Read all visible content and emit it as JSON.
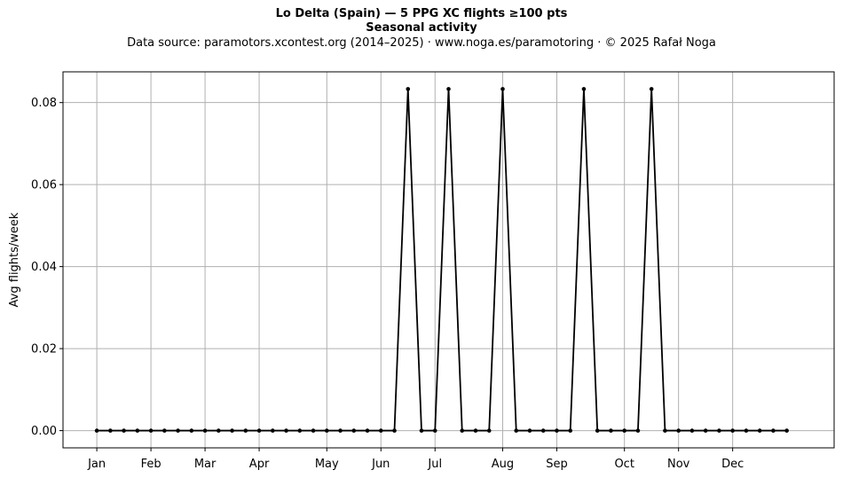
{
  "chart_data": {
    "type": "line",
    "title": "Lo Delta (Spain)  —  5 PPG XC flights ≥100 pts",
    "subtitle": "Seasonal activity",
    "source_note": "Data source: paramotors.xcontest.org (2014–2025)  ·  www.noga.es/paramotoring  ·  © 2025 Rafał Noga",
    "xlabel": "",
    "ylabel": "Avg flights/week",
    "xlim": [
      -2.5,
      54.5
    ],
    "ylim": [
      -0.0042,
      0.0875
    ],
    "grid": true,
    "line_color": "#000000",
    "grid_color": "#b0b0b0",
    "x_ticks": [
      {
        "label": "Jan",
        "week": 0
      },
      {
        "label": "Feb",
        "week": 4
      },
      {
        "label": "Mar",
        "week": 8
      },
      {
        "label": "Apr",
        "week": 12
      },
      {
        "label": "May",
        "week": 17
      },
      {
        "label": "Jun",
        "week": 21
      },
      {
        "label": "Jul",
        "week": 25
      },
      {
        "label": "Aug",
        "week": 30
      },
      {
        "label": "Sep",
        "week": 34
      },
      {
        "label": "Oct",
        "week": 39
      },
      {
        "label": "Nov",
        "week": 43
      },
      {
        "label": "Dec",
        "week": 47
      }
    ],
    "y_ticks": [
      {
        "label": "0.00",
        "value": 0.0
      },
      {
        "label": "0.02",
        "value": 0.02
      },
      {
        "label": "0.04",
        "value": 0.04
      },
      {
        "label": "0.06",
        "value": 0.06
      },
      {
        "label": "0.08",
        "value": 0.08
      }
    ],
    "x": [
      0,
      1,
      2,
      3,
      4,
      5,
      6,
      7,
      8,
      9,
      10,
      11,
      12,
      13,
      14,
      15,
      16,
      17,
      18,
      19,
      20,
      21,
      22,
      23,
      24,
      25,
      26,
      27,
      28,
      29,
      30,
      31,
      32,
      33,
      34,
      35,
      36,
      37,
      38,
      39,
      40,
      41,
      42,
      43,
      44,
      45,
      46,
      47,
      48,
      49,
      50,
      51
    ],
    "series": [
      {
        "values": [
          0,
          0,
          0,
          0,
          0,
          0,
          0,
          0,
          0,
          0,
          0,
          0,
          0,
          0,
          0,
          0,
          0,
          0,
          0,
          0,
          0,
          0,
          0,
          0.0833,
          0,
          0,
          0.0833,
          0,
          0,
          0,
          0.0833,
          0,
          0,
          0,
          0,
          0,
          0.0833,
          0,
          0,
          0,
          0,
          0.0833,
          0,
          0,
          0,
          0,
          0,
          0,
          0,
          0,
          0,
          0
        ]
      }
    ]
  }
}
